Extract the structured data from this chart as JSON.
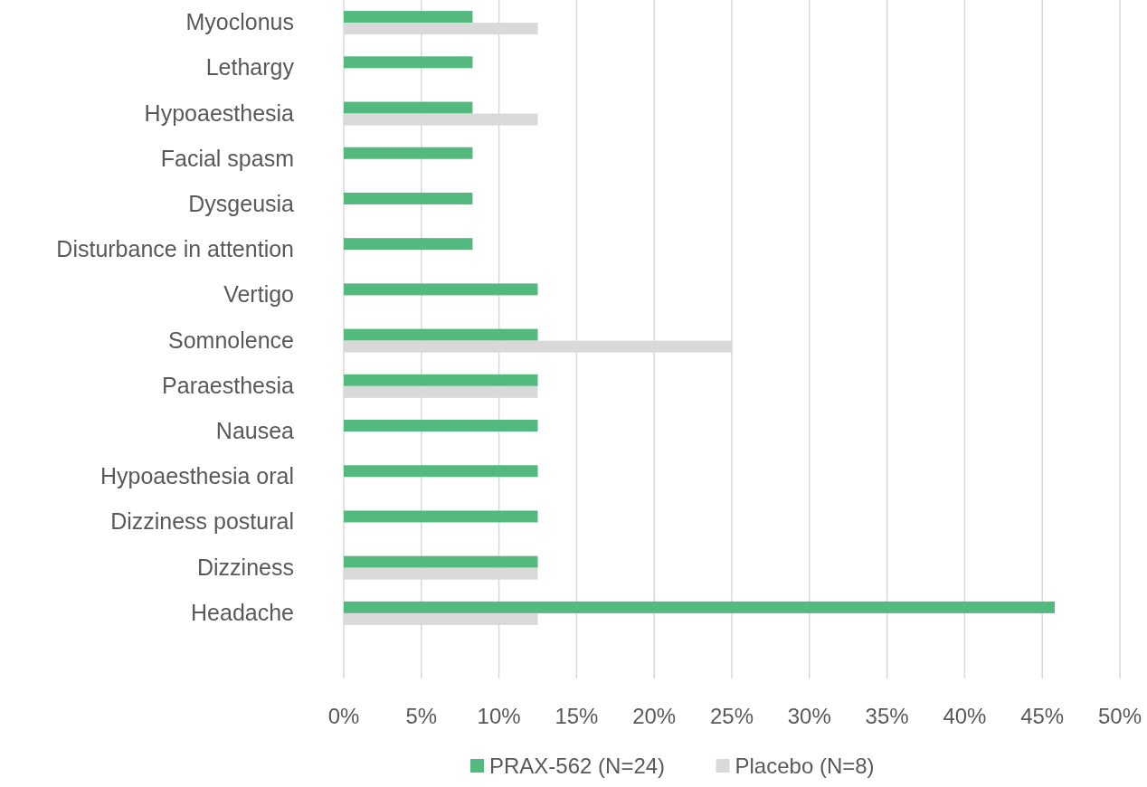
{
  "chart_data": {
    "type": "bar",
    "orientation": "horizontal",
    "categories": [
      "Myoclonus",
      "Lethargy",
      "Hypoaesthesia",
      "Facial spasm",
      "Dysgeusia",
      "Disturbance in attention",
      "Vertigo",
      "Somnolence",
      "Paraesthesia",
      "Nausea",
      "Hypoaesthesia oral",
      "Dizziness postural",
      "Dizziness",
      "Headache"
    ],
    "series": [
      {
        "name": "PRAX-562 (N=24)",
        "color": "#53b97f",
        "values": [
          8.3,
          8.3,
          8.3,
          8.3,
          8.3,
          8.3,
          12.5,
          12.5,
          12.5,
          12.5,
          12.5,
          12.5,
          12.5,
          45.8
        ]
      },
      {
        "name": "Placebo (N=8)",
        "color": "#d9d9d9",
        "values": [
          12.5,
          0,
          12.5,
          0,
          0,
          0,
          0,
          25,
          12.5,
          0,
          0,
          0,
          12.5,
          12.5
        ]
      }
    ],
    "xlim": [
      0,
      50
    ],
    "xticks": [
      {
        "value": 0,
        "label": "0%"
      },
      {
        "value": 5,
        "label": "5%"
      },
      {
        "value": 10,
        "label": "10%"
      },
      {
        "value": 15,
        "label": "15%"
      },
      {
        "value": 20,
        "label": "20%"
      },
      {
        "value": 25,
        "label": "25%"
      },
      {
        "value": 30,
        "label": "30%"
      },
      {
        "value": 35,
        "label": "35%"
      },
      {
        "value": 40,
        "label": "40%"
      },
      {
        "value": 45,
        "label": "45%"
      },
      {
        "value": 50,
        "label": "50%"
      }
    ],
    "grid": "x",
    "legend": "bottom"
  }
}
